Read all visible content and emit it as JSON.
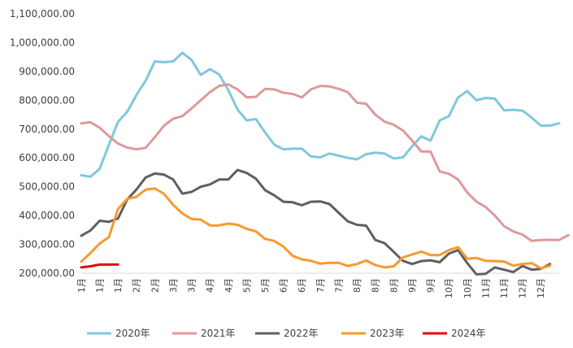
{
  "chart_data": {
    "type": "line",
    "title": "",
    "xlabel": "",
    "ylabel": "",
    "ylim": [
      200000,
      1100000
    ],
    "y_ticks": [
      "200,000.00",
      "300,000.00",
      "400,000.00",
      "500,000.00",
      "600,000.00",
      "700,000.00",
      "800,000.00",
      "900,000.00",
      "1,000,000.00",
      "1,100,000.00"
    ],
    "x_tick_labels": [
      "1月",
      "1月",
      "1月",
      "2月",
      "2月",
      "3月",
      "3月",
      "4月",
      "4月",
      "5月",
      "5月",
      "6月",
      "6月",
      "7月",
      "7月",
      "8月",
      "8月",
      "8月",
      "9月",
      "9月",
      "10月",
      "10月",
      "11月",
      "11月",
      "12月",
      "12月"
    ],
    "x_tick_positions": [
      0,
      2,
      4,
      6,
      8,
      10,
      12,
      14,
      16,
      18,
      20,
      22,
      24,
      26,
      28,
      30,
      32,
      34,
      36,
      38,
      40,
      42,
      44,
      46,
      48,
      50
    ],
    "x_max": 52,
    "legend_position": "bottom",
    "grid": false,
    "series": [
      {
        "name": "2020年",
        "color": "#7fc8dc",
        "values": [
          540000,
          535000,
          562000,
          645000,
          725000,
          760000,
          818000,
          868000,
          935000,
          932000,
          935000,
          965000,
          940000,
          888000,
          908000,
          890000,
          835000,
          768000,
          730000,
          735000,
          688000,
          646000,
          630000,
          632000,
          632000,
          605000,
          602000,
          615000,
          608000,
          600000,
          595000,
          613000,
          618000,
          615000,
          598000,
          602000,
          640000,
          675000,
          660000,
          730000,
          745000,
          810000,
          832000,
          800000,
          808000,
          806000,
          765000,
          767000,
          764000,
          740000,
          712000,
          712000,
          720000
        ]
      },
      {
        "name": "2021年",
        "color": "#dd9a9a",
        "values": [
          720000,
          724000,
          705000,
          676000,
          650000,
          636000,
          630000,
          635000,
          672000,
          712000,
          736000,
          745000,
          772000,
          800000,
          828000,
          850000,
          855000,
          838000,
          810000,
          812000,
          840000,
          838000,
          826000,
          822000,
          810000,
          838000,
          850000,
          848000,
          840000,
          828000,
          792000,
          788000,
          750000,
          726000,
          715000,
          695000,
          660000,
          622000,
          622000,
          553000,
          545000,
          525000,
          480000,
          448000,
          430000,
          400000,
          363000,
          345000,
          334000,
          312000,
          315000,
          316000,
          315000,
          332000
        ]
      },
      {
        "name": "2022年",
        "color": "#5f5f5f",
        "values": [
          330000,
          348000,
          382000,
          378000,
          390000,
          456000,
          490000,
          532000,
          546000,
          542000,
          525000,
          476000,
          482000,
          500000,
          508000,
          525000,
          525000,
          558000,
          548000,
          528000,
          488000,
          470000,
          448000,
          446000,
          436000,
          448000,
          449000,
          440000,
          410000,
          380000,
          368000,
          365000,
          315000,
          304000,
          274000,
          243000,
          232000,
          242000,
          245000,
          238000,
          268000,
          280000,
          235000,
          196000,
          198000,
          220000,
          212000,
          204000,
          225000,
          212000,
          215000,
          232000
        ]
      },
      {
        "name": "2023年",
        "color": "#f79a2e",
        "values": [
          240000,
          270000,
          303000,
          325000,
          423000,
          458000,
          465000,
          490000,
          494000,
          475000,
          437000,
          407000,
          388000,
          386000,
          366000,
          366000,
          372000,
          368000,
          354000,
          345000,
          319000,
          312000,
          292000,
          260000,
          248000,
          243000,
          233000,
          236000,
          236000,
          225000,
          232000,
          244000,
          228000,
          220000,
          224000,
          255000,
          265000,
          275000,
          263000,
          263000,
          280000,
          290000,
          250000,
          253000,
          243000,
          242000,
          240000,
          226000,
          232000,
          235000,
          217000,
          226000
        ]
      },
      {
        "name": "2024年",
        "color": "#e8000b",
        "values": [
          220000,
          224000,
          230000,
          230000,
          230000
        ]
      }
    ]
  }
}
